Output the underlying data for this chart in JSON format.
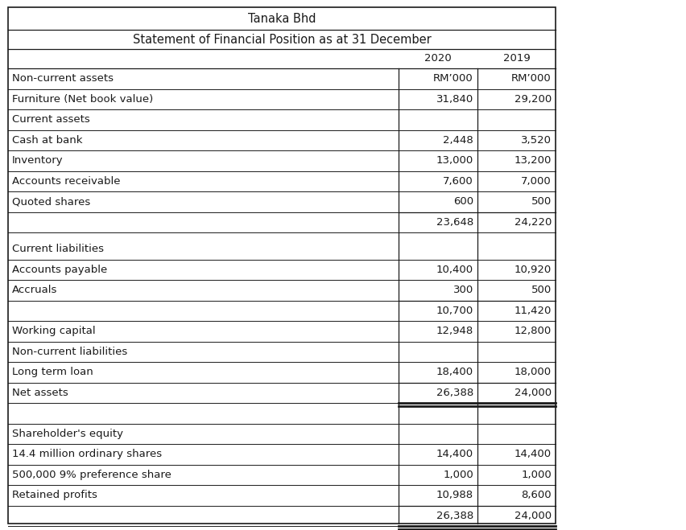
{
  "title1": "Tanaka Bhd",
  "title2": "Statement of Financial Position as at 31 December",
  "rows": [
    {
      "label": "Non-current assets",
      "v2020": "RM’000",
      "v2019": "RM’000",
      "top_line": false,
      "bottom_line": false,
      "double_bottom": false,
      "gap_before": false,
      "is_subheader": false,
      "rm_header": true
    },
    {
      "label": "Furniture (Net book value)",
      "v2020": "31,840",
      "v2019": "29,200",
      "top_line": false,
      "bottom_line": false,
      "double_bottom": false,
      "gap_before": false,
      "is_subheader": false,
      "rm_header": false
    },
    {
      "label": "Current assets",
      "v2020": "",
      "v2019": "",
      "top_line": false,
      "bottom_line": false,
      "double_bottom": false,
      "gap_before": false,
      "is_subheader": false,
      "rm_header": false
    },
    {
      "label": "Cash at bank",
      "v2020": "2,448",
      "v2019": "3,520",
      "top_line": false,
      "bottom_line": false,
      "double_bottom": false,
      "gap_before": false,
      "is_subheader": false,
      "rm_header": false
    },
    {
      "label": "Inventory",
      "v2020": "13,000",
      "v2019": "13,200",
      "top_line": false,
      "bottom_line": false,
      "double_bottom": false,
      "gap_before": false,
      "is_subheader": false,
      "rm_header": false
    },
    {
      "label": "Accounts receivable",
      "v2020": "7,600",
      "v2019": "7,000",
      "top_line": false,
      "bottom_line": false,
      "double_bottom": false,
      "gap_before": false,
      "is_subheader": false,
      "rm_header": false
    },
    {
      "label": "Quoted shares",
      "v2020": "600",
      "v2019": "500",
      "top_line": false,
      "bottom_line": false,
      "double_bottom": false,
      "gap_before": false,
      "is_subheader": false,
      "rm_header": false
    },
    {
      "label": "",
      "v2020": "23,648",
      "v2019": "24,220",
      "top_line": true,
      "bottom_line": false,
      "double_bottom": false,
      "gap_before": false,
      "is_subheader": false,
      "rm_header": false
    },
    {
      "label": "Current liabilities",
      "v2020": "",
      "v2019": "",
      "top_line": false,
      "bottom_line": false,
      "double_bottom": false,
      "gap_before": true,
      "is_subheader": false,
      "rm_header": false
    },
    {
      "label": "Accounts payable",
      "v2020": "10,400",
      "v2019": "10,920",
      "top_line": false,
      "bottom_line": false,
      "double_bottom": false,
      "gap_before": false,
      "is_subheader": false,
      "rm_header": false
    },
    {
      "label": "Accruals",
      "v2020": "300",
      "v2019": "500",
      "top_line": false,
      "bottom_line": false,
      "double_bottom": false,
      "gap_before": false,
      "is_subheader": false,
      "rm_header": false
    },
    {
      "label": "",
      "v2020": "10,700",
      "v2019": "11,420",
      "top_line": true,
      "bottom_line": false,
      "double_bottom": false,
      "gap_before": false,
      "is_subheader": false,
      "rm_header": false
    },
    {
      "label": "Working capital",
      "v2020": "12,948",
      "v2019": "12,800",
      "top_line": false,
      "bottom_line": false,
      "double_bottom": false,
      "gap_before": false,
      "is_subheader": false,
      "rm_header": false
    },
    {
      "label": "Non-current liabilities",
      "v2020": "",
      "v2019": "",
      "top_line": false,
      "bottom_line": false,
      "double_bottom": false,
      "gap_before": false,
      "is_subheader": false,
      "rm_header": false
    },
    {
      "label": "Long term loan",
      "v2020": "18,400",
      "v2019": "18,000",
      "top_line": false,
      "bottom_line": false,
      "double_bottom": false,
      "gap_before": false,
      "is_subheader": false,
      "rm_header": false
    },
    {
      "label": "Net assets",
      "v2020": "26,388",
      "v2019": "24,000",
      "top_line": true,
      "bottom_line": false,
      "double_bottom": true,
      "gap_before": false,
      "is_subheader": false,
      "rm_header": false
    },
    {
      "label": "",
      "v2020": "",
      "v2019": "",
      "top_line": false,
      "bottom_line": false,
      "double_bottom": false,
      "gap_before": false,
      "is_subheader": false,
      "rm_header": false,
      "empty_gap": true
    },
    {
      "label": "Shareholder's equity",
      "v2020": "",
      "v2019": "",
      "top_line": false,
      "bottom_line": false,
      "double_bottom": false,
      "gap_before": false,
      "is_subheader": false,
      "rm_header": false
    },
    {
      "label": "14.4 million ordinary shares",
      "v2020": "14,400",
      "v2019": "14,400",
      "top_line": false,
      "bottom_line": false,
      "double_bottom": false,
      "gap_before": false,
      "is_subheader": false,
      "rm_header": false
    },
    {
      "label": "500,000 9% preference share",
      "v2020": "1,000",
      "v2019": "1,000",
      "top_line": false,
      "bottom_line": false,
      "double_bottom": false,
      "gap_before": false,
      "is_subheader": false,
      "rm_header": false
    },
    {
      "label": "Retained profits",
      "v2020": "10,988",
      "v2019": "8,600",
      "top_line": false,
      "bottom_line": false,
      "double_bottom": false,
      "gap_before": false,
      "is_subheader": false,
      "rm_header": false
    },
    {
      "label": "",
      "v2020": "26,388",
      "v2019": "24,000",
      "top_line": true,
      "bottom_line": false,
      "double_bottom": true,
      "gap_before": false,
      "is_subheader": false,
      "rm_header": false
    }
  ],
  "bg_color": "#ffffff",
  "text_color": "#1a1a1a",
  "line_color": "#1a1a1a",
  "font_size": 9.5,
  "title_font_size": 10.5,
  "font_family": "DejaVu Sans"
}
